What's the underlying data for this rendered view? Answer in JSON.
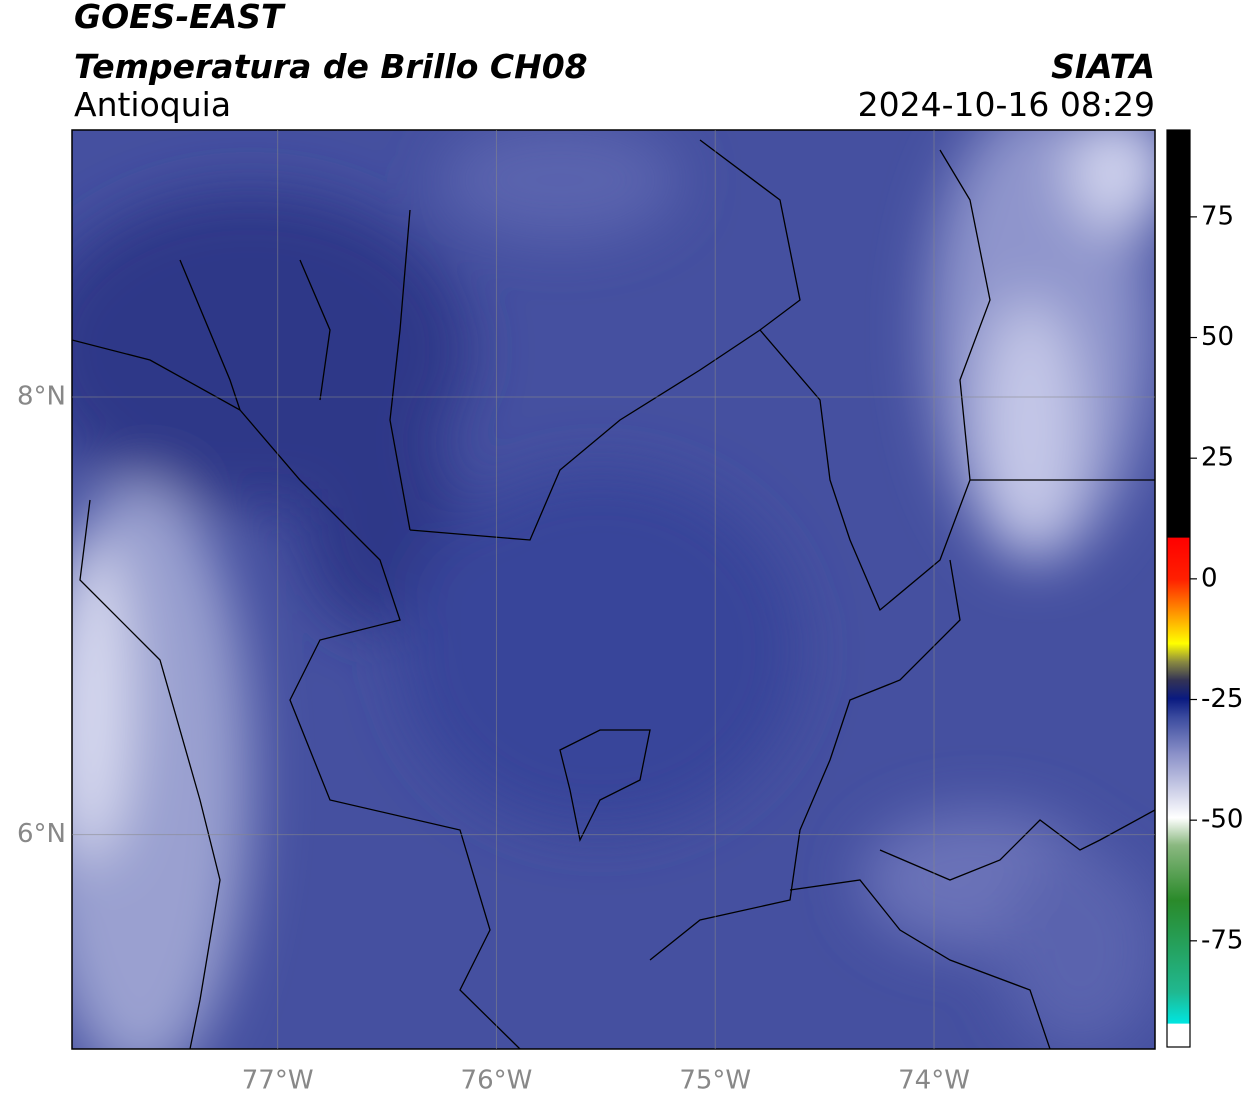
{
  "chart_data": {
    "type": "map",
    "title": "GOES-EAST",
    "subtitle": "Temperatura de Brillo CH08",
    "region": "Antioquia",
    "source": "SIATA",
    "timestamp": "2024-10-16 08:29",
    "xlim": [
      -77.94,
      -72.99
    ],
    "ylim": [
      5.02,
      9.22
    ],
    "xticks": [
      {
        "value": -77,
        "label": "77°W"
      },
      {
        "value": -76,
        "label": "76°W"
      },
      {
        "value": -75,
        "label": "75°W"
      },
      {
        "value": -74,
        "label": "74°W"
      }
    ],
    "yticks": [
      {
        "value": 6,
        "label": "6°N"
      },
      {
        "value": 8,
        "label": "8°N"
      }
    ],
    "grid": true,
    "colorbar": {
      "lim": [
        -97,
        93
      ],
      "ticks": [
        -75,
        -50,
        -25,
        0,
        25,
        50,
        75
      ]
    }
  }
}
